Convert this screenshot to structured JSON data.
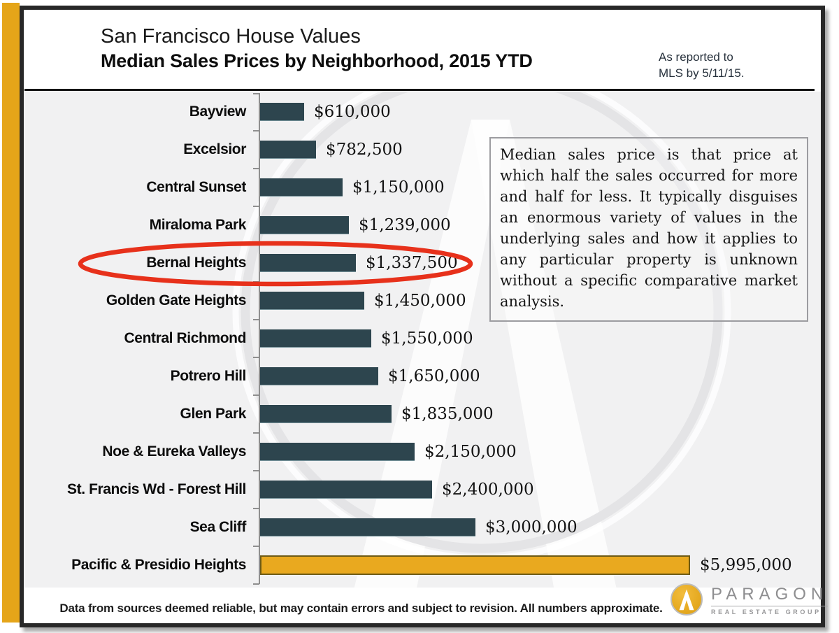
{
  "page": {
    "title": "San Francisco House Values",
    "subtitle": "Median Sales Prices by Neighborhood, 2015 YTD",
    "report_note_line1": "As reported to",
    "report_note_line2": "MLS by 5/11/15.",
    "footer": "Data from sources deemed reliable, but may contain errors and subject to revision. All numbers approximate."
  },
  "annotation_box": {
    "text": "Median sales price is that price at which half the sales occurred for more and half for less. It typically disguises an enormous variety of values in the underlying sales and how it applies to any particular property is unknown without a specific comparative market analysis."
  },
  "logo": {
    "name": "PARAGON",
    "tagline": "REAL ESTATE GROUP"
  },
  "colors": {
    "bar": "#2D454E",
    "highlight_bar": "#E9A91F",
    "accent_stripe": "#E5A519",
    "circle_annotation": "#E7311B"
  },
  "chart_data": {
    "type": "bar",
    "orientation": "horizontal",
    "title": "Median Sales Prices by Neighborhood, 2015 YTD",
    "categories": [
      "Bayview",
      "Excelsior",
      "Central Sunset",
      "Miraloma Park",
      "Bernal Heights",
      "Golden Gate Heights",
      "Central Richmond",
      "Potrero Hill",
      "Glen Park",
      "Noe & Eureka Valleys",
      "St. Francis Wd - Forest Hill",
      "Sea Cliff",
      "Pacific & Presidio Heights"
    ],
    "values": [
      610000,
      782500,
      1150000,
      1239000,
      1337500,
      1450000,
      1550000,
      1650000,
      1835000,
      2150000,
      2400000,
      3000000,
      5995000
    ],
    "value_labels": [
      "$610,000",
      "$782,500",
      "$1,150,000",
      "$1,239,000",
      "$1,337,500",
      "$1,450,000",
      "$1,550,000",
      "$1,650,000",
      "$1,835,000",
      "$2,150,000",
      "$2,400,000",
      "$3,000,000",
      "$5,995,000"
    ],
    "highlight_category": "Pacific & Presidio Heights",
    "circled_category": "Bernal Heights",
    "xlim": [
      0,
      6200000
    ],
    "grid": false,
    "legend": false
  }
}
